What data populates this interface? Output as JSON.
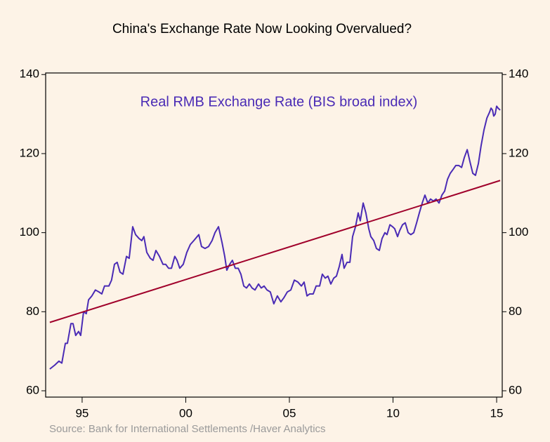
{
  "chart_data": {
    "type": "line",
    "title": "China's Exchange Rate Now Looking Overvalued?",
    "source": "Source:   Bank for International Settlements /Haver Analytics",
    "series": [
      {
        "name": "Real RMB Exchange Rate (BIS broad index)",
        "color": "#4a2bb5",
        "x": [
          1993.44,
          1993.68,
          1993.88,
          1994.02,
          1994.19,
          1994.29,
          1994.46,
          1994.56,
          1994.69,
          1994.83,
          1994.93,
          1995.07,
          1995.2,
          1995.31,
          1995.47,
          1995.64,
          1995.81,
          1995.95,
          1996.08,
          1996.29,
          1996.42,
          1996.56,
          1996.69,
          1996.83,
          1996.97,
          1997.14,
          1997.27,
          1997.44,
          1997.58,
          1997.75,
          1997.88,
          1997.98,
          1998.12,
          1998.29,
          1998.42,
          1998.56,
          1998.73,
          1998.9,
          1999.03,
          1999.17,
          1999.31,
          1999.47,
          1999.58,
          1999.71,
          1999.88,
          2000.05,
          2000.22,
          2000.39,
          2000.63,
          2000.76,
          2000.93,
          2001.1,
          2001.27,
          2001.41,
          2001.58,
          2001.75,
          2001.88,
          2001.98,
          2002.12,
          2002.25,
          2002.39,
          2002.53,
          2002.66,
          2002.8,
          2002.93,
          2003.07,
          2003.2,
          2003.34,
          2003.51,
          2003.64,
          2003.78,
          2003.92,
          2004.08,
          2004.25,
          2004.42,
          2004.59,
          2004.73,
          2004.9,
          2005.07,
          2005.24,
          2005.41,
          2005.58,
          2005.71,
          2005.85,
          2005.98,
          2006.15,
          2006.29,
          2006.46,
          2006.59,
          2006.73,
          2006.86,
          2007.0,
          2007.14,
          2007.27,
          2007.41,
          2007.54,
          2007.64,
          2007.78,
          2007.92,
          2008.05,
          2008.19,
          2008.32,
          2008.42,
          2008.56,
          2008.69,
          2008.83,
          2008.93,
          2009.07,
          2009.2,
          2009.34,
          2009.47,
          2009.61,
          2009.71,
          2009.85,
          2009.98,
          2010.08,
          2010.22,
          2010.32,
          2010.46,
          2010.59,
          2010.73,
          2010.86,
          2011.0,
          2011.14,
          2011.27,
          2011.41,
          2011.54,
          2011.68,
          2011.81,
          2011.95,
          2012.08,
          2012.22,
          2012.36,
          2012.49,
          2012.63,
          2012.76,
          2012.9,
          2013.03,
          2013.17,
          2013.31,
          2013.44,
          2013.58,
          2013.71,
          2013.85,
          2013.98,
          2014.12,
          2014.25,
          2014.39,
          2014.53,
          2014.66,
          2014.73,
          2014.8,
          2014.86,
          2014.93,
          2015.0,
          2015.07,
          2015.17
        ],
        "values": [
          65.5,
          66.5,
          67.5,
          67,
          72,
          72,
          77,
          77,
          74,
          75,
          74,
          80,
          79.5,
          83,
          84,
          85.5,
          85,
          84.5,
          86.5,
          86.5,
          88,
          92,
          92.5,
          90,
          89.5,
          94,
          93.5,
          101.5,
          99.5,
          98.5,
          98,
          99,
          95,
          93.5,
          93,
          95.5,
          94,
          92,
          92,
          91,
          91,
          94,
          93,
          91,
          92,
          95,
          97,
          98,
          99.5,
          96.5,
          96,
          96.5,
          98,
          100,
          101.5,
          97.5,
          94,
          90.5,
          92,
          93,
          91,
          91,
          89.5,
          86.5,
          86,
          87,
          86,
          85.5,
          87,
          86,
          86.5,
          85.5,
          85,
          82,
          84,
          82.5,
          83.5,
          85,
          85.5,
          88,
          87.5,
          86.5,
          87.5,
          84,
          84.5,
          84.5,
          86.5,
          86.5,
          89.5,
          88.5,
          89,
          87,
          88.5,
          89,
          91.5,
          94.5,
          91,
          92.5,
          92.5,
          99,
          101.5,
          105,
          103,
          107.5,
          105,
          101,
          99,
          98,
          96,
          95.5,
          98.5,
          100,
          99.5,
          102,
          101.5,
          101,
          99,
          100.5,
          102,
          102.5,
          100,
          99.5,
          100,
          102.5,
          105,
          107.5,
          109.5,
          107.5,
          108.5,
          108,
          108.5,
          107.5,
          109.5,
          110.5,
          113.5,
          115,
          116,
          117,
          117,
          116.5,
          119,
          121,
          118,
          115,
          114.5,
          117.5,
          122,
          126,
          129,
          130.5,
          131.5,
          131,
          129.5,
          130,
          132,
          131.5,
          131
        ]
      },
      {
        "color": "#a0002a",
        "x": [
          1993.44,
          2015.17
        ],
        "values": [
          77.3,
          113.2
        ]
      }
    ],
    "xlim": [
      1993.24,
      2015.27
    ],
    "xticks": [
      {
        "value": 1995,
        "label": "95"
      },
      {
        "value": 2000,
        "label": "00"
      },
      {
        "value": 2005,
        "label": "05"
      },
      {
        "value": 2010,
        "label": "10"
      },
      {
        "value": 2015,
        "label": "15"
      }
    ],
    "ylim": [
      58.4,
      140.4
    ],
    "yticks": [
      60,
      80,
      100,
      120,
      140
    ],
    "y2lim": [
      58.4,
      140.4
    ],
    "y2ticks": [
      60,
      80,
      100,
      120,
      140
    ]
  }
}
